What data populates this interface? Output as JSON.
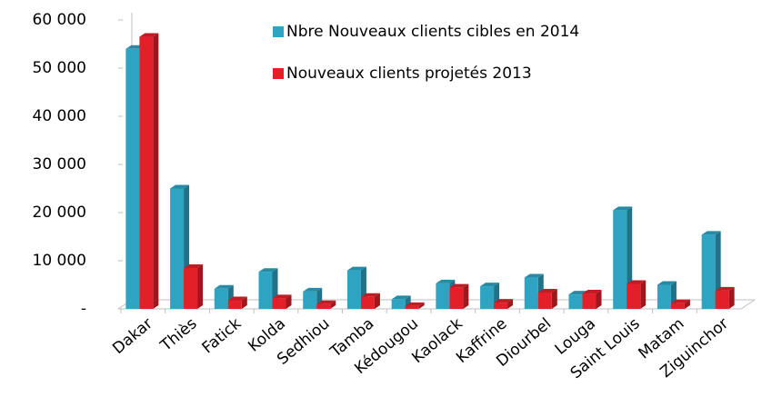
{
  "chart_data": {
    "type": "bar",
    "categories": [
      "Dakar",
      "Thiès",
      "Fatick",
      "Kolda",
      "Sedhiou",
      "Tamba",
      "Kédougou",
      "Kaolack",
      "Kaffrine",
      "Diourbel",
      "Louga",
      "Saint Louis",
      "Matam",
      "Ziguinchor"
    ],
    "series": [
      {
        "name": "Nbre Nouveaux clients cibles en 2014",
        "color": "#2fa3c2",
        "values": [
          54000,
          25000,
          4200,
          7700,
          3600,
          8000,
          2000,
          5300,
          4700,
          6500,
          3000,
          20500,
          5000,
          15400
        ]
      },
      {
        "name": "Nouveaux clients projetés 2013",
        "color": "#e3202a",
        "values": [
          56500,
          8500,
          1800,
          2200,
          1000,
          2500,
          600,
          4400,
          1300,
          3400,
          3200,
          5200,
          1200,
          3800
        ]
      }
    ],
    "ylim": [
      0,
      60000
    ],
    "yticks": [
      {
        "value": 0,
        "label": "-"
      },
      {
        "value": 10000,
        "label": "10 000"
      },
      {
        "value": 20000,
        "label": "20 000"
      },
      {
        "value": 30000,
        "label": "30 000"
      },
      {
        "value": 40000,
        "label": "40 000"
      },
      {
        "value": 50000,
        "label": "50 000"
      },
      {
        "value": 60000,
        "label": "60 000"
      }
    ],
    "grid": false,
    "legend": "top"
  }
}
